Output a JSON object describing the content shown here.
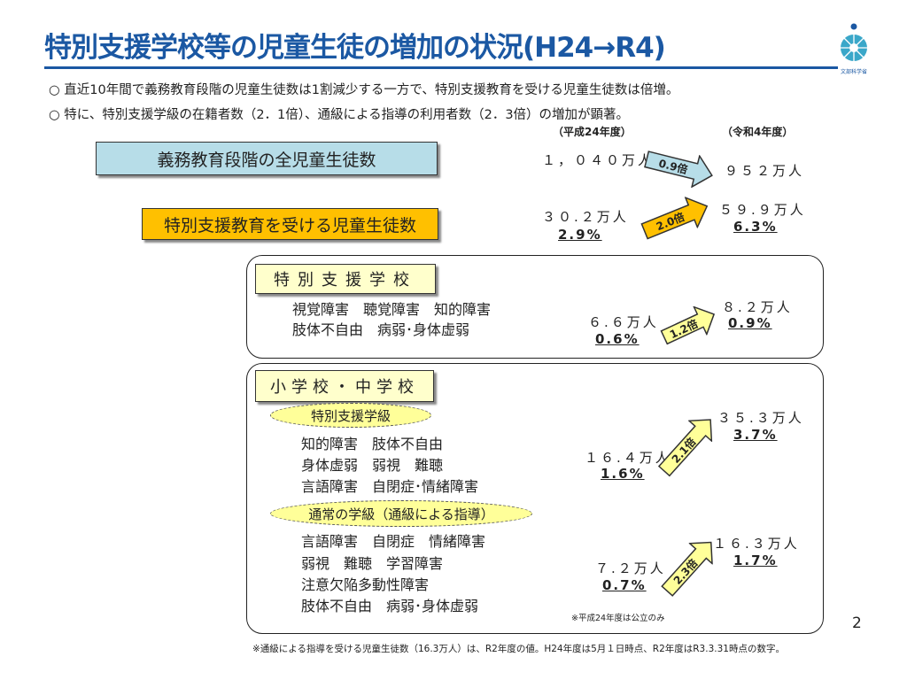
{
  "title": "特別支援学校等の児童生徒の増加の状況(H24→R4)",
  "logo_text": "文部科学省",
  "bullets": [
    "○ 直近10年間で義務教育段階の児童生徒数は1割減少する一方で、特別支援教育を受ける児童生徒数は倍増。",
    "○ 特に、特別支援学級の在籍者数（2．1倍）、通級による指導の利用者数（2．3倍）の増加が顕著。"
  ],
  "headers": {
    "before": "（平成24年度）",
    "after": "（令和4年度）"
  },
  "all_students": {
    "label": "義務教育段階の全児童生徒数",
    "before": "１，０４０万人",
    "ratio": "0.9倍",
    "after": "９５２万人"
  },
  "special_ed": {
    "label": "特別支援教育を受ける児童生徒数",
    "before": "３０.２万人",
    "before_pct": "2.9%",
    "ratio": "2.0倍",
    "after": "５９.９万人",
    "after_pct": "6.3%"
  },
  "special_school": {
    "label": "特別支援学校",
    "lines": [
      "視覚障害　聴覚障害　知的障害",
      "肢体不自由　病弱･身体虚弱"
    ],
    "before": "６.６万人",
    "before_pct": "0.6%",
    "ratio": "1.2倍",
    "after": "８.２万人",
    "after_pct": "0.9%"
  },
  "elem_mid": {
    "label": "小学校・中学校",
    "class": {
      "label": "特別支援学級",
      "lines": [
        "知的障害　肢体不自由",
        "身体虚弱　弱視　難聴",
        "言語障害　自閉症･情緒障害"
      ],
      "before": "１６.４万人",
      "before_pct": "1.6%",
      "ratio": "2.1倍",
      "after": "３５.３万人",
      "after_pct": "3.7%"
    },
    "tsukyu": {
      "label": "通常の学級（通級による指導）",
      "lines": [
        "言語障害　自閉症　情緒障害",
        "弱視　難聴　学習障害",
        "注意欠陥多動性障害",
        "肢体不自由　病弱･身体虚弱"
      ],
      "before": "７.２万人",
      "before_pct": "0.7%",
      "ratio": "2.3倍",
      "after": "１６.３万人",
      "after_pct": "1.7%"
    },
    "note": "※平成24年度は公立のみ"
  },
  "page_number": "2",
  "footnote": "※通級による指導を受ける児童生徒数（16.3万人）は、R2年度の値。H24年度は5月１日時点、R2年度はR3.3.31時点の数字。",
  "colors": {
    "title": "#1b58a3",
    "blue_box": "#b7dde8",
    "orange_box": "#ffc000",
    "yellow": "#ffffcc"
  }
}
